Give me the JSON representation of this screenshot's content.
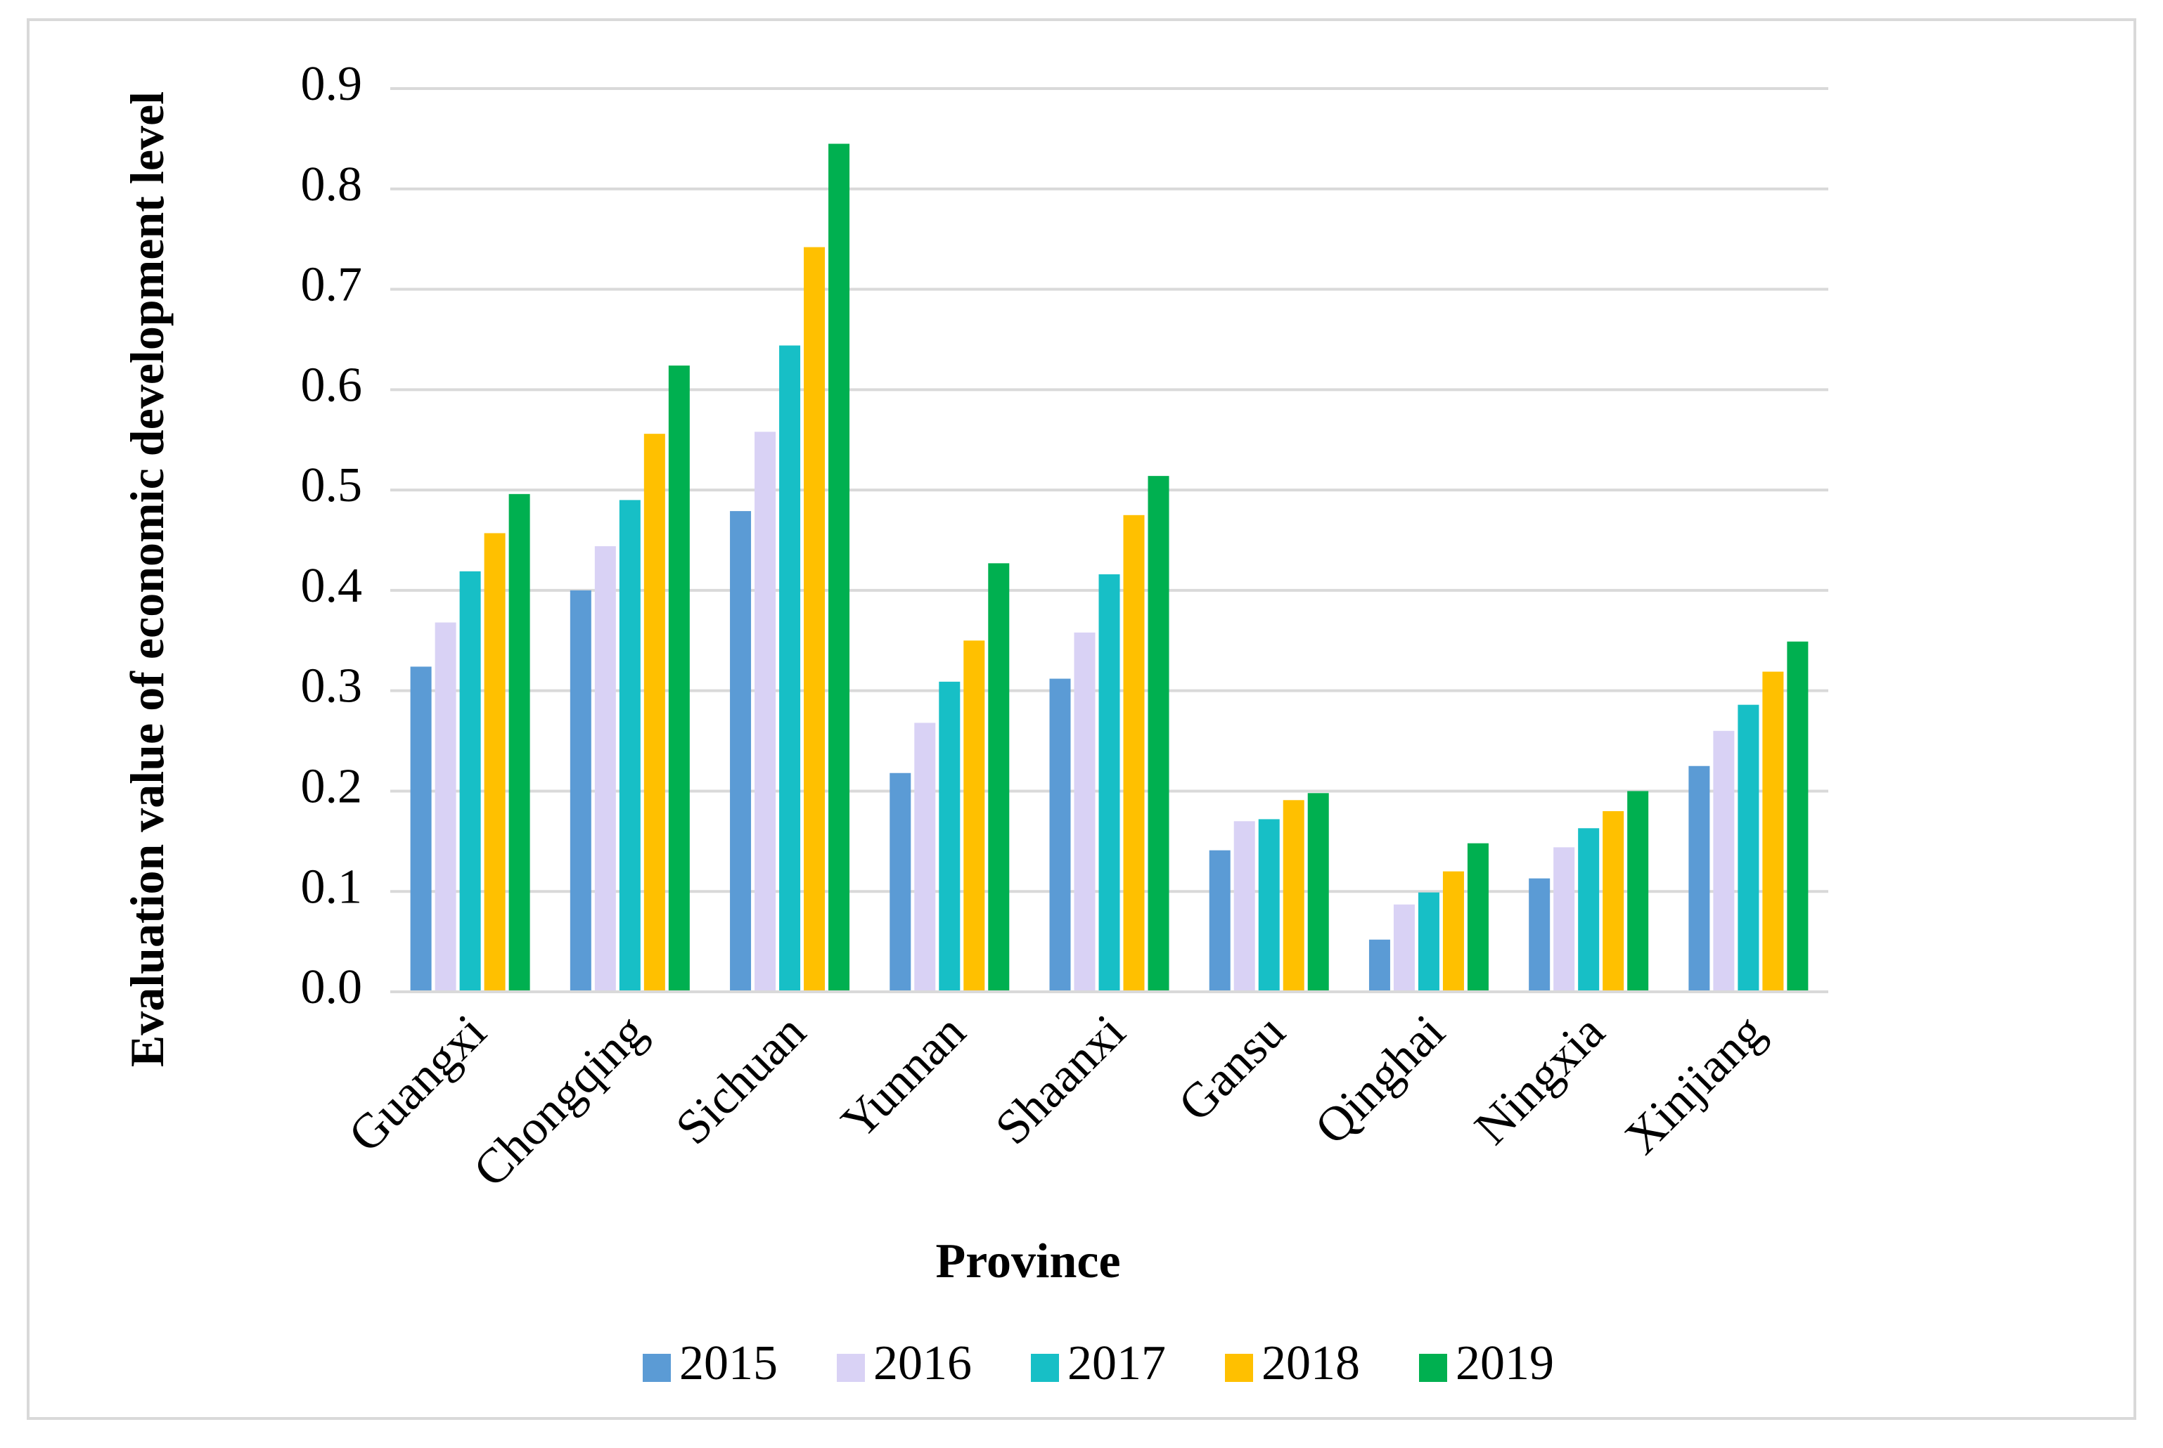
{
  "chart_data": {
    "type": "bar",
    "y_label": "Evaluation value of economic development level",
    "x_label": "Province",
    "categories": [
      "Guangxi",
      "Chongqing",
      "Sichuan",
      "Yunnan",
      "Shaanxi",
      "Gansu",
      "Qinghai",
      "Ningxia",
      "Xinjiang"
    ],
    "series": [
      {
        "name": "2015",
        "color": "#5b9bd5",
        "values": [
          0.324,
          0.4,
          0.479,
          0.218,
          0.312,
          0.141,
          0.052,
          0.113,
          0.225
        ]
      },
      {
        "name": "2016",
        "color": "#d9d2f5",
        "values": [
          0.368,
          0.444,
          0.558,
          0.268,
          0.358,
          0.17,
          0.087,
          0.144,
          0.26
        ]
      },
      {
        "name": "2017",
        "color": "#17bfc6",
        "values": [
          0.419,
          0.49,
          0.644,
          0.309,
          0.416,
          0.172,
          0.099,
          0.163,
          0.286
        ]
      },
      {
        "name": "2018",
        "color": "#ffc000",
        "values": [
          0.457,
          0.556,
          0.742,
          0.35,
          0.475,
          0.191,
          0.12,
          0.18,
          0.319
        ]
      },
      {
        "name": "2019",
        "color": "#00b050",
        "values": [
          0.496,
          0.624,
          0.845,
          0.427,
          0.514,
          0.198,
          0.148,
          0.2,
          0.349
        ]
      }
    ],
    "ylim": [
      0,
      0.9
    ],
    "yticks": [
      {
        "value": 0,
        "label": "0.0"
      },
      0.1,
      0.2,
      0.3,
      0.4,
      0.5,
      0.6,
      0.7,
      0.8,
      0.9
    ],
    "grid": true,
    "legend": "bottom"
  }
}
